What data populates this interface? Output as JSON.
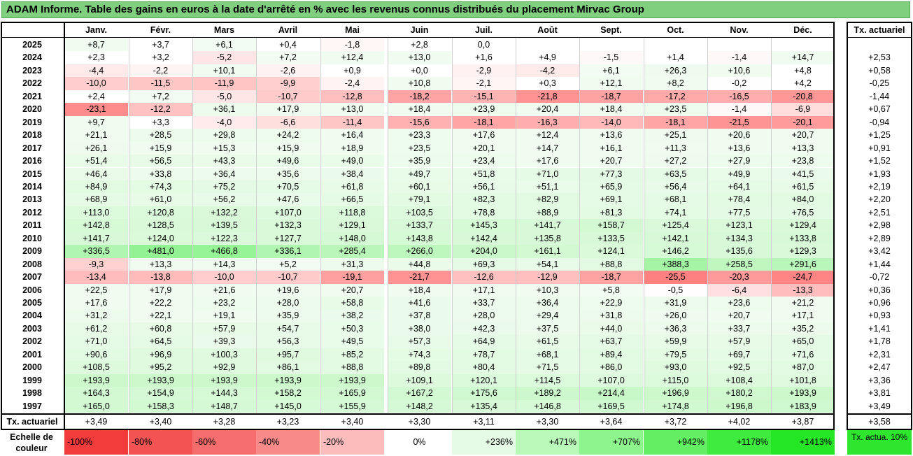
{
  "title": "ADAM Informe. Table des gains en euros à la date d'arrêté en % avec les revenus connus distribués du placement Mirvac Group",
  "months": [
    "Janv.",
    "Févr.",
    "Mars",
    "Avril",
    "Mai",
    "Juin",
    "Juil.",
    "Août",
    "Sept.",
    "Oct.",
    "Nov.",
    "Déc."
  ],
  "rate_header": "Tx. actuariel",
  "rows": [
    {
      "year": "2025",
      "values": [
        "+8,7",
        "+3,7",
        "+6,1",
        "+0,4",
        "-1,8",
        "+2,8",
        "0,0",
        "",
        "",
        "",
        "",
        ""
      ],
      "rate": ""
    },
    {
      "year": "2024",
      "values": [
        "+2,3",
        "+3,2",
        "-5,2",
        "+7,2",
        "+12,4",
        "+13,0",
        "+1,6",
        "+4,9",
        "-1,5",
        "+1,4",
        "-1,4",
        "+14,7"
      ],
      "rate": "+2,53"
    },
    {
      "year": "2023",
      "values": [
        "-4,4",
        "-2,2",
        "+10,1",
        "-2,6",
        "+0,9",
        "+0,0",
        "-2,9",
        "-4,2",
        "+6,1",
        "+26,3",
        "+10,6",
        "+4,8"
      ],
      "rate": "+0,58"
    },
    {
      "year": "2022",
      "values": [
        "-10,0",
        "-11,5",
        "-11,9",
        "-9,9",
        "-2,4",
        "+10,8",
        "-2,1",
        "+0,3",
        "+12,1",
        "+8,2",
        "-0,2",
        "+4,2"
      ],
      "rate": "-0,25"
    },
    {
      "year": "2021",
      "values": [
        "+2,4",
        "+7,2",
        "-5,0",
        "-10,7",
        "-12,8",
        "-18,2",
        "-15,1",
        "-21,8",
        "-18,7",
        "-17,2",
        "-16,5",
        "-20,8"
      ],
      "rate": "-1,44"
    },
    {
      "year": "2020",
      "values": [
        "-23,1",
        "-12,2",
        "+36,1",
        "+17,9",
        "+13,0",
        "+18,4",
        "+23,9",
        "+20,4",
        "+18,4",
        "+23,5",
        "-1,4",
        "-6,9"
      ],
      "rate": "+0,67"
    },
    {
      "year": "2019",
      "values": [
        "+9,7",
        "+3,3",
        "-4,0",
        "-6,6",
        "-11,4",
        "-15,6",
        "-18,1",
        "-16,3",
        "-14,0",
        "-18,1",
        "-21,5",
        "-20,1"
      ],
      "rate": "-0,94"
    },
    {
      "year": "2018",
      "values": [
        "+21,1",
        "+28,5",
        "+29,8",
        "+24,2",
        "+16,4",
        "+23,3",
        "+17,6",
        "+12,4",
        "+13,6",
        "+25,1",
        "+20,6",
        "+20,7"
      ],
      "rate": "+1,25"
    },
    {
      "year": "2017",
      "values": [
        "+26,1",
        "+15,9",
        "+15,3",
        "+15,9",
        "+18,9",
        "+23,5",
        "+20,1",
        "+14,7",
        "+16,1",
        "+11,3",
        "+13,6",
        "+13,3"
      ],
      "rate": "+0,91"
    },
    {
      "year": "2016",
      "values": [
        "+51,4",
        "+56,5",
        "+43,3",
        "+49,6",
        "+49,0",
        "+35,9",
        "+23,4",
        "+17,6",
        "+20,7",
        "+27,2",
        "+27,9",
        "+23,8"
      ],
      "rate": "+1,52"
    },
    {
      "year": "2015",
      "values": [
        "+46,4",
        "+33,8",
        "+36,4",
        "+35,6",
        "+38,4",
        "+49,7",
        "+51,8",
        "+71,0",
        "+77,3",
        "+63,5",
        "+49,9",
        "+41,5"
      ],
      "rate": "+1,93"
    },
    {
      "year": "2014",
      "values": [
        "+84,9",
        "+74,3",
        "+75,2",
        "+70,5",
        "+61,8",
        "+60,1",
        "+56,1",
        "+51,1",
        "+65,9",
        "+56,4",
        "+64,1",
        "+61,5"
      ],
      "rate": "+2,19"
    },
    {
      "year": "2013",
      "values": [
        "+68,9",
        "+61,0",
        "+56,2",
        "+47,6",
        "+66,5",
        "+79,1",
        "+82,3",
        "+82,9",
        "+69,1",
        "+68,1",
        "+78,4",
        "+84,0"
      ],
      "rate": "+2,20"
    },
    {
      "year": "2012",
      "values": [
        "+113,0",
        "+120,8",
        "+132,2",
        "+107,0",
        "+118,8",
        "+103,5",
        "+78,8",
        "+88,9",
        "+81,3",
        "+74,1",
        "+77,5",
        "+76,5"
      ],
      "rate": "+2,51"
    },
    {
      "year": "2011",
      "values": [
        "+142,8",
        "+128,5",
        "+139,5",
        "+132,3",
        "+129,1",
        "+133,7",
        "+145,3",
        "+141,7",
        "+158,7",
        "+125,4",
        "+123,1",
        "+129,4"
      ],
      "rate": "+2,98"
    },
    {
      "year": "2010",
      "values": [
        "+141,7",
        "+124,0",
        "+122,3",
        "+127,7",
        "+148,0",
        "+143,8",
        "+142,4",
        "+135,8",
        "+133,5",
        "+142,1",
        "+134,3",
        "+133,8"
      ],
      "rate": "+2,89"
    },
    {
      "year": "2009",
      "values": [
        "+336,5",
        "+481,0",
        "+466,8",
        "+336,1",
        "+285,4",
        "+266,0",
        "+204,0",
        "+161,1",
        "+124,1",
        "+146,2",
        "+135,6",
        "+129,3"
      ],
      "rate": "+3,42"
    },
    {
      "year": "2008",
      "values": [
        "-9,3",
        "+13,3",
        "+14,3",
        "+5,2",
        "+31,3",
        "+44,8",
        "+69,3",
        "+54,1",
        "+88,8",
        "+388,3",
        "+258,5",
        "+291,6"
      ],
      "rate": "+1,44"
    },
    {
      "year": "2007",
      "values": [
        "-13,4",
        "-13,8",
        "-10,0",
        "-10,7",
        "-19,1",
        "-21,7",
        "-12,6",
        "-12,9",
        "-18,7",
        "-25,5",
        "-20,3",
        "-24,7"
      ],
      "rate": "-0,72"
    },
    {
      "year": "2006",
      "values": [
        "+22,5",
        "+17,9",
        "+21,6",
        "+19,6",
        "+20,7",
        "+18,4",
        "+17,1",
        "+10,3",
        "+5,8",
        "-0,5",
        "-6,4",
        "-13,3"
      ],
      "rate": "+0,36"
    },
    {
      "year": "2005",
      "values": [
        "+17,6",
        "+22,2",
        "+23,2",
        "+28,0",
        "+58,8",
        "+41,6",
        "+33,7",
        "+36,4",
        "+22,9",
        "+31,9",
        "+23,6",
        "+21,2"
      ],
      "rate": "+0,96"
    },
    {
      "year": "2004",
      "values": [
        "+31,2",
        "+22,1",
        "+19,1",
        "+35,9",
        "+38,2",
        "+37,8",
        "+28,0",
        "+29,4",
        "+31,8",
        "+26,0",
        "+20,7",
        "+17,1"
      ],
      "rate": "+0,93"
    },
    {
      "year": "2003",
      "values": [
        "+61,2",
        "+60,8",
        "+57,9",
        "+54,7",
        "+50,3",
        "+38,0",
        "+42,3",
        "+37,5",
        "+44,0",
        "+36,3",
        "+33,7",
        "+35,2"
      ],
      "rate": "+1,41"
    },
    {
      "year": "2002",
      "values": [
        "+71,0",
        "+64,5",
        "+39,3",
        "+56,3",
        "+49,5",
        "+57,3",
        "+64,9",
        "+61,5",
        "+63,7",
        "+59,9",
        "+57,9",
        "+65,0"
      ],
      "rate": "+1,78"
    },
    {
      "year": "2001",
      "values": [
        "+90,6",
        "+96,9",
        "+100,3",
        "+95,7",
        "+85,2",
        "+74,3",
        "+78,7",
        "+68,1",
        "+89,4",
        "+79,5",
        "+69,7",
        "+71,6"
      ],
      "rate": "+2,31"
    },
    {
      "year": "2000",
      "values": [
        "+108,5",
        "+95,2",
        "+92,9",
        "+86,1",
        "+88,8",
        "+89,8",
        "+80,4",
        "+71,5",
        "+86,0",
        "+93,0",
        "+92,5",
        "+87,0"
      ],
      "rate": "+2,47"
    },
    {
      "year": "1999",
      "values": [
        "+193,9",
        "+193,9",
        "+193,9",
        "+193,9",
        "+193,9",
        "+109,1",
        "+120,1",
        "+114,5",
        "+107,0",
        "+115,0",
        "+108,4",
        "+101,8"
      ],
      "rate": "+3,36"
    },
    {
      "year": "1998",
      "values": [
        "+164,3",
        "+154,9",
        "+144,3",
        "+158,2",
        "+165,9",
        "+167,2",
        "+175,6",
        "+189,2",
        "+214,4",
        "+196,9",
        "+180,2",
        "+193,9"
      ],
      "rate": "+3,81"
    },
    {
      "year": "1997",
      "values": [
        "+165,0",
        "+158,3",
        "+148,7",
        "+145,0",
        "+155,9",
        "+148,2",
        "+135,4",
        "+146,8",
        "+169,5",
        "+174,8",
        "+196,8",
        "+183,9"
      ],
      "rate": "+3,49"
    }
  ],
  "footer": {
    "label": "Tx. actuariel",
    "values": [
      "+3,49",
      "+3,40",
      "+3,28",
      "+3,23",
      "+3,40",
      "+3,30",
      "+3,11",
      "+3,30",
      "+3,64",
      "+3,72",
      "+4,02",
      "+3,87"
    ],
    "rate": "+3,58"
  },
  "scale": {
    "label": "Echelle de couleur",
    "items": [
      {
        "text": "-100%",
        "color": "#f23b3b"
      },
      {
        "text": "-80%",
        "color": "#f45353"
      },
      {
        "text": "-60%",
        "color": "#f66d6d"
      },
      {
        "text": "-40%",
        "color": "#f98a8a"
      },
      {
        "text": "-20%",
        "color": "#fcbcbc"
      },
      {
        "text": "0%",
        "color": "#ffffff"
      },
      {
        "text": "+236%",
        "color": "#e6fbe6"
      },
      {
        "text": "+471%",
        "color": "#b9f8b9"
      },
      {
        "text": "+707%",
        "color": "#8ef48e"
      },
      {
        "text": "+942%",
        "color": "#63ef63"
      },
      {
        "text": "+1178%",
        "color": "#3eeb3e"
      },
      {
        "text": "+1413%",
        "color": "#25e625"
      }
    ],
    "tx10": "Tx. actua. 10%",
    "tx10_color": "#2fe62f"
  }
}
